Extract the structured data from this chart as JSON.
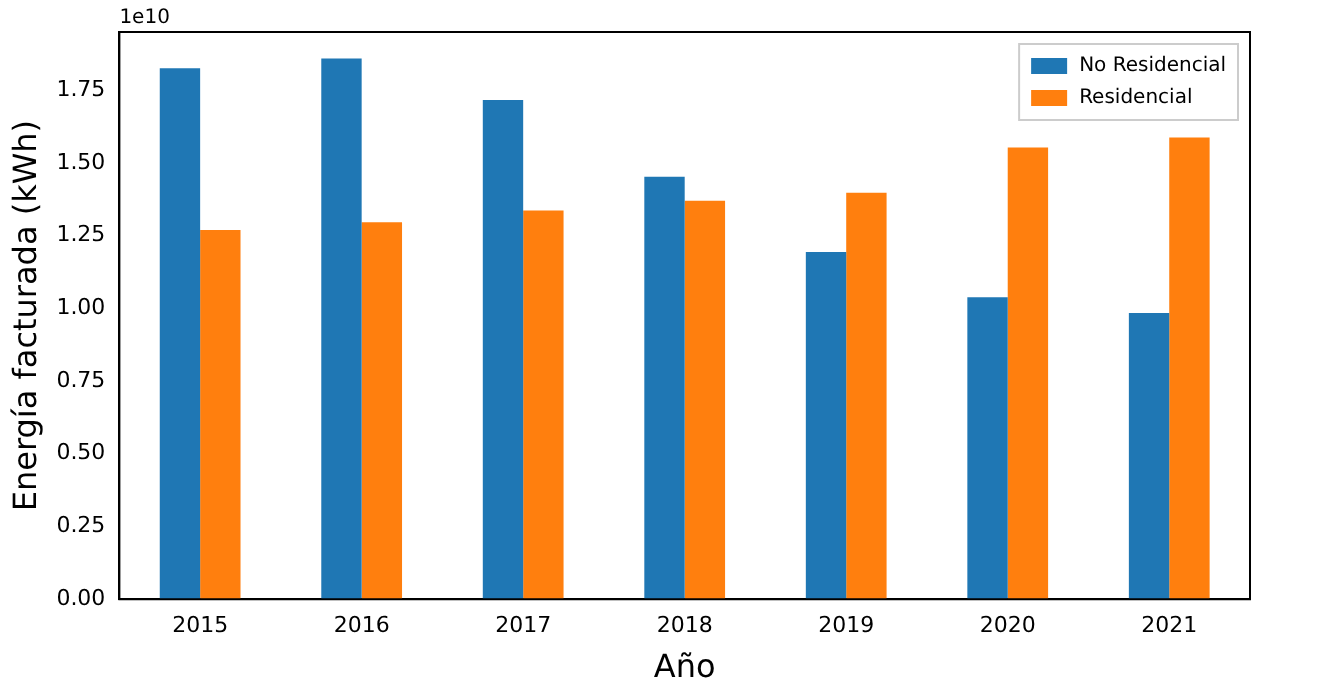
{
  "chart_data": {
    "type": "bar",
    "xlabel": "Año",
    "ylabel": "Energía facturada (kWh)",
    "annotations": [
      "1e10"
    ],
    "categories": [
      "2015",
      "2016",
      "2017",
      "2018",
      "2019",
      "2020",
      "2021"
    ],
    "series": [
      {
        "name": "No Residencial",
        "color": "#1f77b4",
        "values": [
          1.825,
          1.859,
          1.716,
          1.452,
          1.194,
          1.038,
          0.984
        ]
      },
      {
        "name": "Residencial",
        "color": "#ff7f0e",
        "values": [
          1.269,
          1.296,
          1.336,
          1.37,
          1.397,
          1.553,
          1.587
        ]
      }
    ],
    "ylim": [
      0,
      1.95
    ],
    "yticks": [
      {
        "value": 0,
        "label": "0.00"
      },
      {
        "value": 0.25,
        "label": "0.25"
      },
      {
        "value": 0.5,
        "label": "0.50"
      },
      {
        "value": 0.75,
        "label": "0.75"
      },
      {
        "value": 1,
        "label": "1.00"
      },
      {
        "value": 1.25,
        "label": "1.25"
      },
      {
        "value": 1.5,
        "label": "1.50"
      },
      {
        "value": 1.75,
        "label": "1.75"
      }
    ],
    "grid": false,
    "legend": "top right"
  }
}
